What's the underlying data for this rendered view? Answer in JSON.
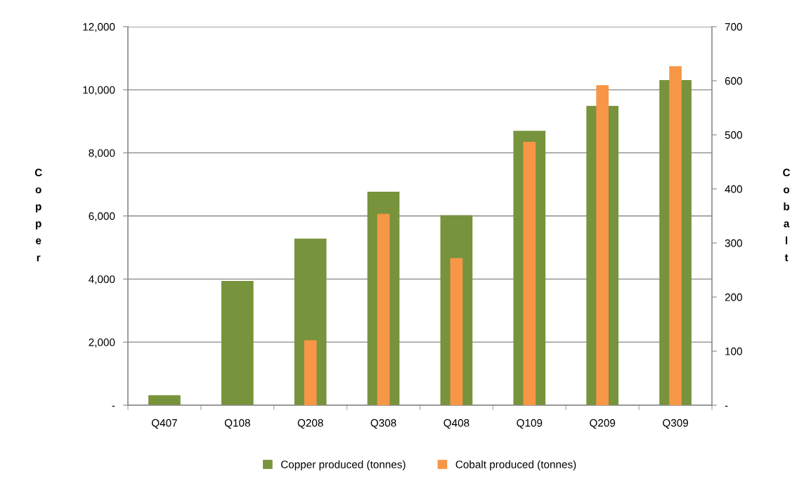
{
  "chart_data": {
    "type": "bar",
    "categories": [
      "Q407",
      "Q108",
      "Q208",
      "Q308",
      "Q408",
      "Q109",
      "Q209",
      "Q309"
    ],
    "ylabel": "Copper",
    "y2label": "Cobalt",
    "series": [
      {
        "name": "Copper produced (tonnes)",
        "color": "#77933c",
        "values": [
          320,
          3940,
          5280,
          6770,
          6020,
          8700,
          9490,
          10310
        ]
      },
      {
        "name": "Cobalt produced (tonnes)",
        "color": "#f79646",
        "axis": "y2",
        "values": [
          null,
          null,
          120,
          354,
          272,
          487,
          592,
          627
        ]
      }
    ],
    "ylim": [
      0,
      12000
    ],
    "yticks": [
      {
        "value": 0,
        "label": "-"
      },
      {
        "value": 2000,
        "label": "2,000"
      },
      {
        "value": 4000,
        "label": "4,000"
      },
      {
        "value": 6000,
        "label": "6,000"
      },
      {
        "value": 8000,
        "label": "8,000"
      },
      {
        "value": 10000,
        "label": "10,000"
      },
      {
        "value": 12000,
        "label": "12,000"
      }
    ],
    "y2lim": [
      0,
      700
    ],
    "y2ticks": [
      {
        "value": 0,
        "label": "-"
      },
      100,
      200,
      300,
      400,
      500,
      600,
      700
    ],
    "grid": "y",
    "legend": "bottom"
  }
}
